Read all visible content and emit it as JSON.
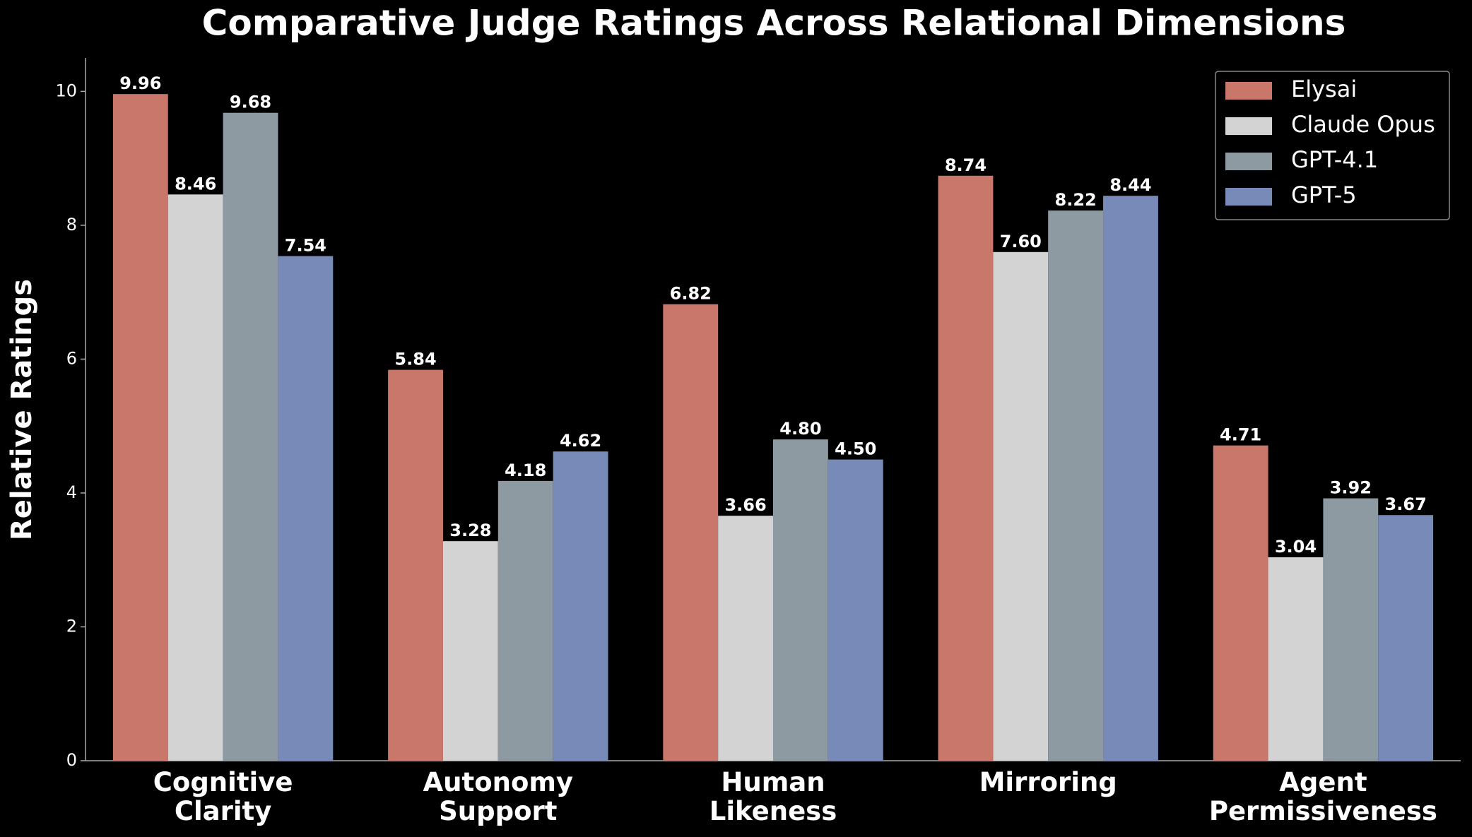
{
  "chart_data": {
    "type": "bar",
    "title": "Comparative Judge Ratings Across Relational Dimensions",
    "y_label": "Relative Ratings",
    "categories": [
      "Cognitive\nClarity",
      "Autonomy\nSupport",
      "Human\nLikeness",
      "Mirroring",
      "Agent\nPermissiveness"
    ],
    "series": [
      {
        "name": "Elysai",
        "color": "#c9776b",
        "values": [
          9.96,
          5.84,
          6.82,
          8.74,
          4.71
        ],
        "value_labels": [
          "9.96",
          "5.84",
          "6.82",
          "8.74",
          "4.71"
        ]
      },
      {
        "name": "Claude Opus",
        "color": "#d3d3d3",
        "values": [
          8.46,
          3.28,
          3.66,
          7.6,
          3.04
        ],
        "value_labels": [
          "8.46",
          "3.28",
          "3.66",
          "7.60",
          "3.04"
        ]
      },
      {
        "name": "GPT-4.1",
        "color": "#8e9aa2",
        "values": [
          9.68,
          4.18,
          4.8,
          8.22,
          3.92
        ],
        "value_labels": [
          "9.68",
          "4.18",
          "4.80",
          "8.22",
          "3.92"
        ]
      },
      {
        "name": "GPT-5",
        "color": "#788bb8",
        "values": [
          7.54,
          4.62,
          4.5,
          8.44,
          3.67
        ],
        "value_labels": [
          "7.54",
          "4.62",
          "4.50",
          "8.44",
          "3.67"
        ]
      }
    ],
    "ylim": [
      0,
      10.5
    ],
    "yticks": [
      0,
      2,
      4,
      6,
      8,
      10
    ],
    "grid": false,
    "legend": "upper right"
  }
}
